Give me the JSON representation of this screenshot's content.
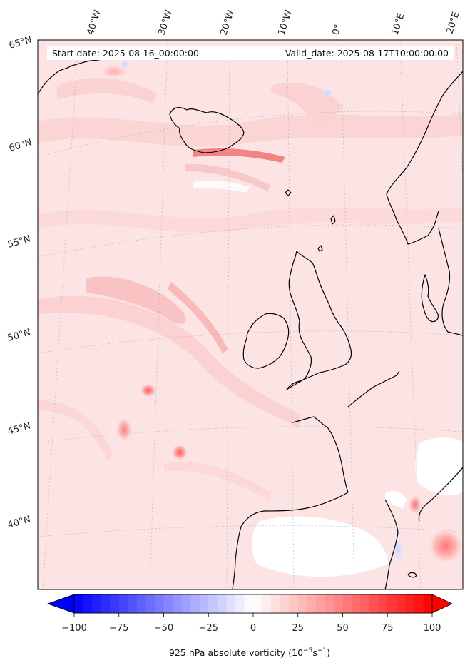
{
  "header": {
    "start_date": "Start date: 2025-08-16_00:00:00",
    "valid_date": "Valid_date: 2025-08-17T10:00:00.00"
  },
  "longitude_labels": [
    "40°W",
    "30°W",
    "20°W",
    "10°W",
    "0°",
    "10°E",
    "20°E"
  ],
  "latitude_labels": [
    "65°N",
    "60°N",
    "55°N",
    "50°N",
    "45°N",
    "40°N"
  ],
  "colorbar": {
    "min": -100,
    "max": 100,
    "ticks": [
      "−100",
      "−75",
      "−50",
      "−25",
      "0",
      "25",
      "50",
      "75",
      "100"
    ],
    "label_main": "925 hPa absolute vorticity (10",
    "label_exp1": "−5",
    "label_mid": "s",
    "label_exp2": "−1",
    "label_end": ")",
    "low_color": "#0000ff",
    "mid_color": "#ffffff",
    "high_color": "#ff0000"
  },
  "colors": {
    "background_field": "#fde4e4",
    "coastline": "#000000",
    "gridline": "#b0b0b0"
  }
}
